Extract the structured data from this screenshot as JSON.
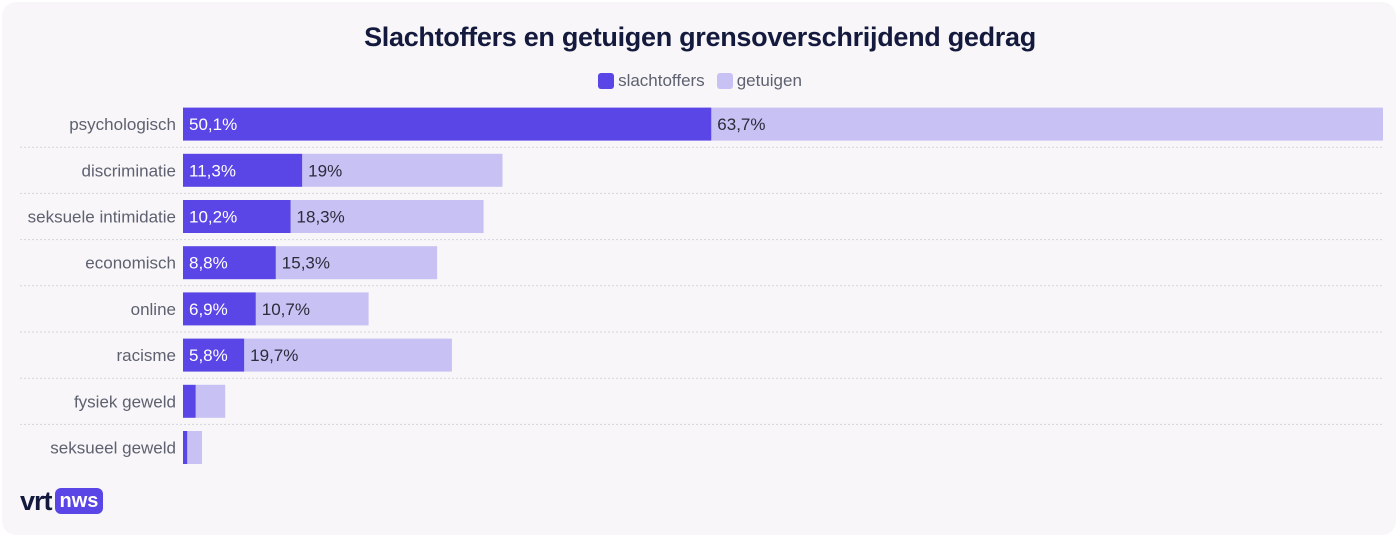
{
  "colors": {
    "slachtoffers": "#5a45e6",
    "getuigen": "#c8c1f4",
    "grid": "#d4d4dc",
    "label": "#5d6170",
    "value_on_dark": "#ffffff",
    "value_on_light": "#2b2b3a"
  },
  "chart_data": {
    "type": "bar",
    "orientation": "horizontal",
    "stacked": true,
    "title": "Slachtoffers en getuigen grensoverschrijdend gedrag",
    "legend_position": "top-center",
    "categories": [
      "psychologisch",
      "discriminatie",
      "seksuele intimidatie",
      "economisch",
      "online",
      "racisme",
      "fysiek geweld",
      "seksueel geweld"
    ],
    "series": [
      {
        "name": "slachtoffers",
        "values": [
          50.1,
          11.3,
          10.2,
          8.8,
          6.9,
          5.8,
          1.2,
          0.4
        ],
        "labels": [
          "50,1%",
          "11,3%",
          "10,2%",
          "8,8%",
          "6,9%",
          "5,8%",
          "",
          ""
        ]
      },
      {
        "name": "getuigen",
        "values": [
          63.7,
          19,
          18.3,
          15.3,
          10.7,
          19.7,
          2.8,
          1.4
        ],
        "labels": [
          "63,7%",
          "19%",
          "18,3%",
          "15,3%",
          "10,7%",
          "19,7%",
          "",
          ""
        ]
      }
    ],
    "xlim": [
      0,
      113.8
    ],
    "grid": false
  },
  "brand": {
    "logo_text": "vrt",
    "logo_badge": "nws"
  }
}
